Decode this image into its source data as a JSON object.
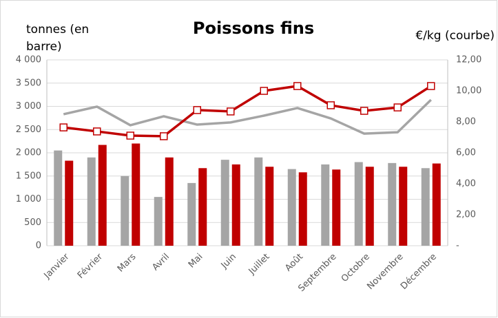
{
  "chart_data": {
    "type": "bar-line",
    "title": "Poissons fins",
    "y_label": [
      "tonnes (en",
      "barre)"
    ],
    "y2_label": "€/kg (courbe)",
    "categories": [
      "Janvier",
      "Février",
      "Mars",
      "Avril",
      "Mai",
      "Juin",
      "Juillet",
      "Août",
      "Septembre",
      "Octobre",
      "Novembre",
      "Décembre"
    ],
    "series": [
      {
        "kind": "bar",
        "color": "#a5a5a5",
        "values": [
          2050,
          1900,
          1500,
          1050,
          1350,
          1850,
          1900,
          1650,
          1750,
          1800,
          1780,
          1670
        ]
      },
      {
        "kind": "bar",
        "color": "#c00000",
        "values": [
          1830,
          2170,
          2200,
          1900,
          1670,
          1750,
          1700,
          1580,
          1640,
          1700,
          1700,
          1770
        ]
      },
      {
        "kind": "line",
        "axis": "y2",
        "color": "#a5a5a5",
        "marker": false,
        "values": [
          8.49,
          8.98,
          7.78,
          8.36,
          7.82,
          7.96,
          8.4,
          8.89,
          8.22,
          7.24,
          7.33,
          9.42
        ]
      },
      {
        "kind": "line",
        "axis": "y2",
        "color": "#c00000",
        "marker": true,
        "values": [
          7.64,
          7.38,
          7.11,
          7.07,
          8.76,
          8.67,
          10.0,
          10.31,
          9.07,
          8.71,
          8.93,
          10.31
        ]
      }
    ],
    "ylim": [
      0,
      4000
    ],
    "yticks": [
      0,
      500,
      {
        "value": 1000,
        "label": "1 000"
      },
      {
        "value": 1500,
        "label": "1 500"
      },
      {
        "value": 2000,
        "label": "2 000"
      },
      {
        "value": 2500,
        "label": "2 500"
      },
      {
        "value": 3000,
        "label": "3 000"
      },
      {
        "value": 3500,
        "label": "3 500"
      },
      {
        "value": 4000,
        "label": "4 000"
      }
    ],
    "y2lim": [
      0,
      12
    ],
    "y2ticks": [
      {
        "value": 0,
        "label": "-"
      },
      {
        "value": 2,
        "label": "2,00"
      },
      {
        "value": 4,
        "label": "4,00"
      },
      {
        "value": 6,
        "label": "6,00"
      },
      {
        "value": 8,
        "label": "8,00"
      },
      {
        "value": 10,
        "label": "10,00"
      },
      {
        "value": 12,
        "label": "12,00"
      }
    ],
    "grid": true
  }
}
